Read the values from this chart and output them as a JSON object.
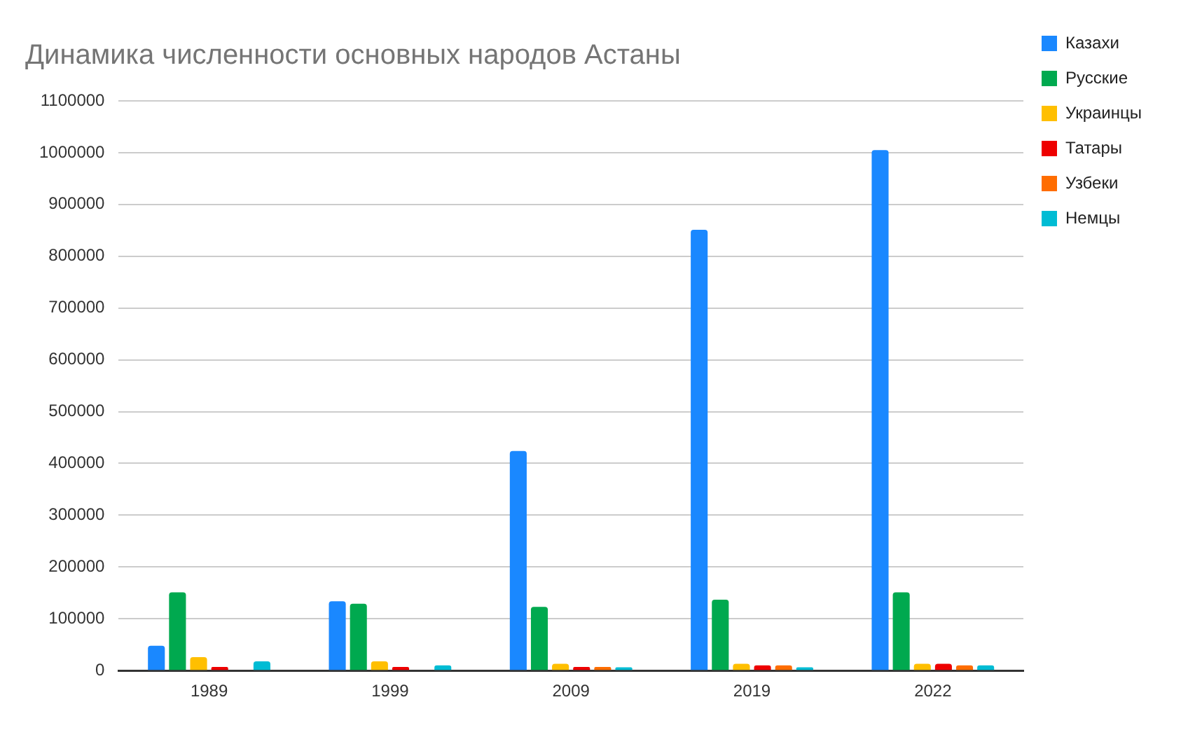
{
  "chart_data": {
    "type": "bar",
    "title": "Динамика численности основных народов Астаны",
    "categories": [
      "1989",
      "1999",
      "2009",
      "2019",
      "2022"
    ],
    "series": [
      {
        "name": "Казахи",
        "color": "#1a88ff",
        "values": [
          48000,
          134000,
          424000,
          851000,
          1005000
        ]
      },
      {
        "name": "Русские",
        "color": "#00a94f",
        "values": [
          151000,
          129000,
          123000,
          137000,
          151000
        ]
      },
      {
        "name": "Украинцы",
        "color": "#ffbf00",
        "values": [
          26000,
          18000,
          13000,
          13000,
          13000
        ]
      },
      {
        "name": "Татары",
        "color": "#ee0000",
        "values": [
          7000,
          7000,
          7000,
          10000,
          13000
        ]
      },
      {
        "name": "Узбеки",
        "color": "#ff6d00",
        "values": [
          0,
          0,
          7000,
          10000,
          10000
        ]
      },
      {
        "name": "Немцы",
        "color": "#00bcd4",
        "values": [
          18000,
          10000,
          6500,
          6500,
          10000
        ]
      }
    ],
    "ylim": [
      0,
      1100000
    ],
    "yticks": [
      0,
      100000,
      200000,
      300000,
      400000,
      500000,
      600000,
      700000,
      800000,
      900000,
      1000000,
      1100000
    ],
    "grid": "y",
    "legend": "right"
  }
}
